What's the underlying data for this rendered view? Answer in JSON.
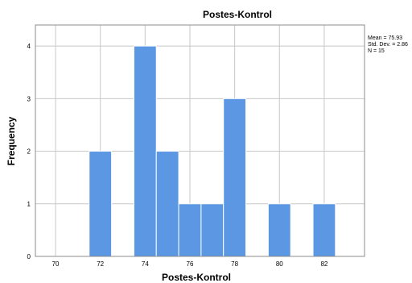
{
  "chart_data": {
    "type": "bar",
    "title": "Postes-Kontrol",
    "xlabel": "Postes-Kontrol",
    "ylabel": "Frequency",
    "bin_width": 1,
    "bins": [
      {
        "start": 71.5,
        "end": 72.5,
        "count": 2
      },
      {
        "start": 73.5,
        "end": 74.5,
        "count": 4
      },
      {
        "start": 74.5,
        "end": 75.5,
        "count": 2
      },
      {
        "start": 75.5,
        "end": 76.5,
        "count": 1
      },
      {
        "start": 76.5,
        "end": 77.5,
        "count": 1
      },
      {
        "start": 77.5,
        "end": 78.5,
        "count": 3
      },
      {
        "start": 79.5,
        "end": 80.5,
        "count": 1
      },
      {
        "start": 81.5,
        "end": 82.5,
        "count": 1
      }
    ],
    "xlim": [
      69.1,
      83.8
    ],
    "ylim": [
      0,
      4.4
    ],
    "x_ticks": [
      "70",
      "72",
      "74",
      "76",
      "78",
      "80",
      "82"
    ],
    "y_ticks": [
      "0",
      "1",
      "2",
      "3",
      "4"
    ],
    "stats": {
      "mean": "Mean = 75.93",
      "std": "Std. Dev. = 2.86",
      "n": "N = 15"
    },
    "grid": true,
    "bar_color": "#5b97e2"
  }
}
